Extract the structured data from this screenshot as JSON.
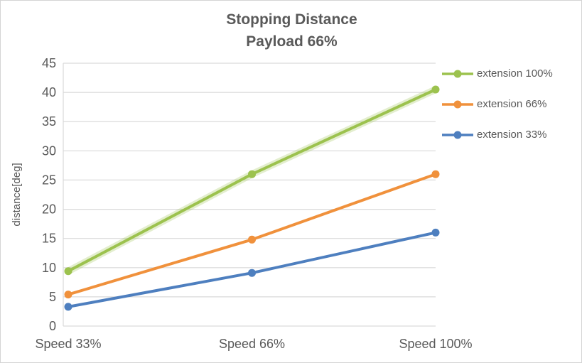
{
  "window": {
    "background": "#FFFFFF",
    "border_color": "#D4D4D4"
  },
  "chart_data": {
    "type": "line",
    "title": "Stopping Distance",
    "subtitle": "Payload 66%",
    "xlabel": "",
    "ylabel": "distance[deg]",
    "categories": [
      "Speed 33%",
      "Speed 66%",
      "Speed 100%"
    ],
    "series": [
      {
        "name": "extension 100%",
        "color": "#9CC24E",
        "values": [
          9.4,
          26,
          40.5
        ],
        "halo": true
      },
      {
        "name": "extension 66%",
        "color": "#F0913C",
        "values": [
          5.4,
          14.8,
          26
        ],
        "halo": false
      },
      {
        "name": "extension 33%",
        "color": "#4E7FBF",
        "values": [
          3.3,
          9.1,
          16
        ],
        "halo": false
      }
    ],
    "ylim": [
      0,
      45
    ],
    "ytick_step": 5,
    "yticks": [
      0,
      5,
      10,
      15,
      20,
      25,
      30,
      35,
      40,
      45
    ],
    "grid": true,
    "legend_position": "right",
    "colors": {
      "grid": "#D9D9D9",
      "axis_line": "#D9D9D9",
      "axis_text": "#595959",
      "title_text": "#595959"
    }
  }
}
